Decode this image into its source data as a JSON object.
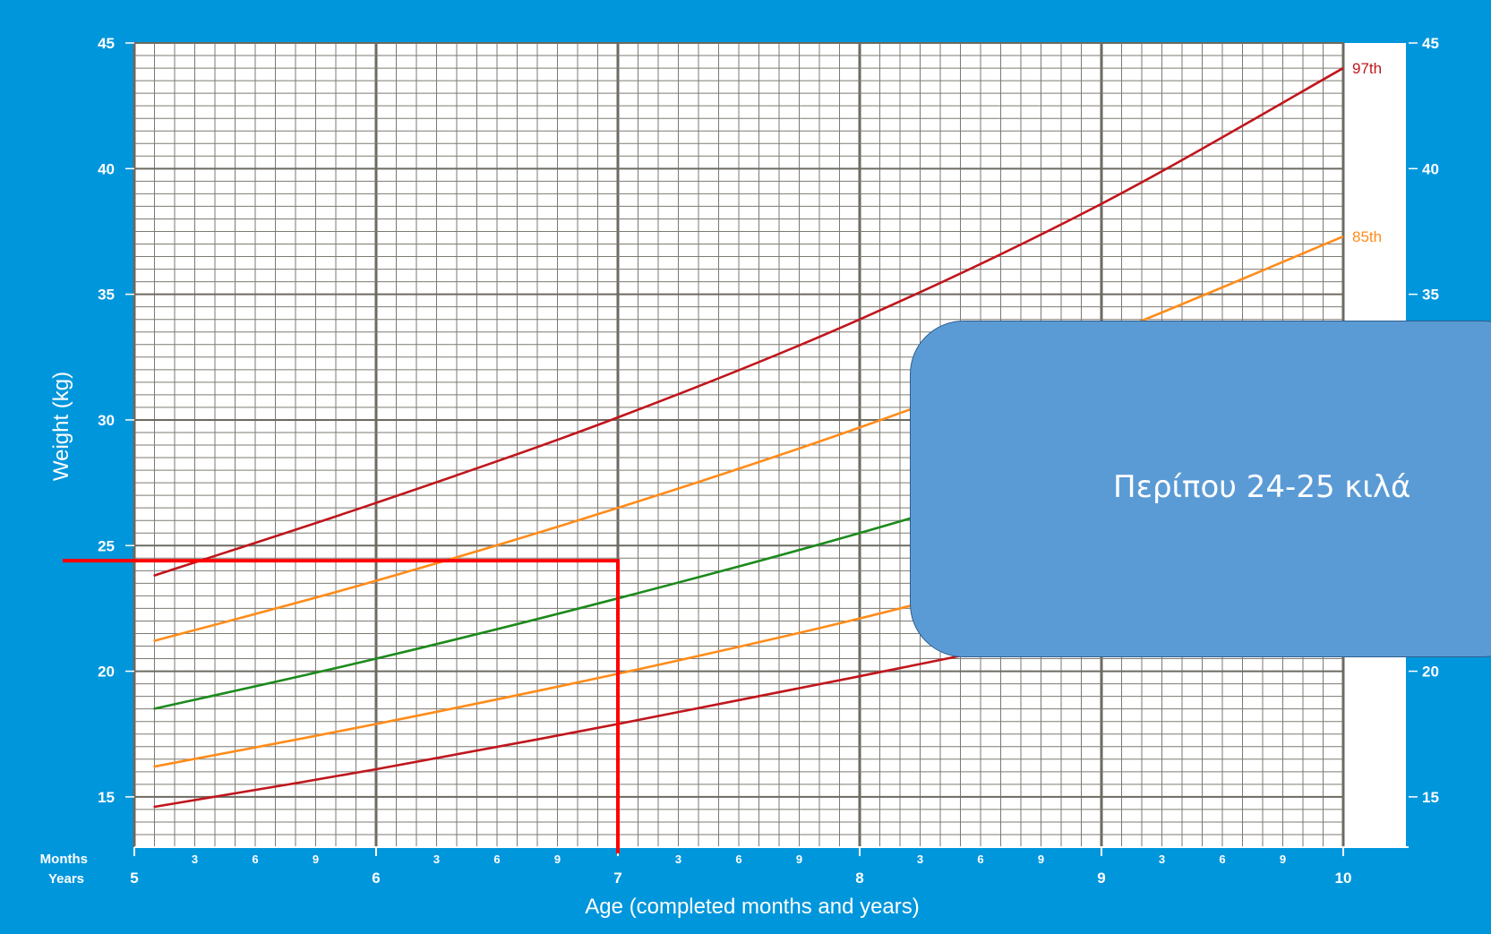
{
  "callout": {
    "text": "Περίπου 24-25 κιλά"
  },
  "chart_data": {
    "type": "line",
    "title": "",
    "xlabel": "Age (completed months and years)",
    "ylabel": "Weight (kg)",
    "x_unit_caption": {
      "months": "Months",
      "years": "Years"
    },
    "xlim": [
      5,
      10
    ],
    "ylim": [
      13,
      45
    ],
    "x_tick_labels": [
      "5",
      "6",
      "7",
      "8",
      "9",
      "10"
    ],
    "month_tick_labels": [
      "3",
      "6",
      "9"
    ],
    "y_tick_labels": [
      "15",
      "20",
      "25",
      "30",
      "35",
      "40",
      "45"
    ],
    "grid": true,
    "colors": {
      "red": "#c0161c",
      "orange": "#ff8c1a",
      "green": "#1c8a1c",
      "marker": "#ff0000"
    },
    "series": [
      {
        "name": "97th",
        "color": "red",
        "x": [
          5.08,
          6,
          7,
          8,
          9,
          10
        ],
        "y": [
          23.8,
          26.7,
          30.1,
          34.0,
          38.6,
          44.0
        ]
      },
      {
        "name": "85th",
        "color": "orange",
        "x": [
          5.08,
          6,
          7,
          8,
          9,
          10
        ],
        "y": [
          21.2,
          23.6,
          26.5,
          29.7,
          33.3,
          37.3
        ]
      },
      {
        "color": "green",
        "x": [
          5.08,
          6,
          7,
          8,
          9,
          10
        ],
        "y": [
          18.5,
          20.5,
          22.9,
          25.5,
          28.4,
          31.6
        ]
      },
      {
        "color": "orange",
        "x": [
          5.08,
          6,
          7,
          8,
          9,
          10
        ],
        "y": [
          16.2,
          17.9,
          19.9,
          22.1,
          24.6,
          27.2
        ]
      },
      {
        "color": "red",
        "x": [
          5.08,
          6,
          7,
          8,
          9,
          10
        ],
        "y": [
          14.6,
          16.1,
          17.9,
          19.8,
          21.8,
          24.1
        ]
      }
    ],
    "annotation": {
      "age_years": 7,
      "weight_kg": 24.4
    }
  }
}
